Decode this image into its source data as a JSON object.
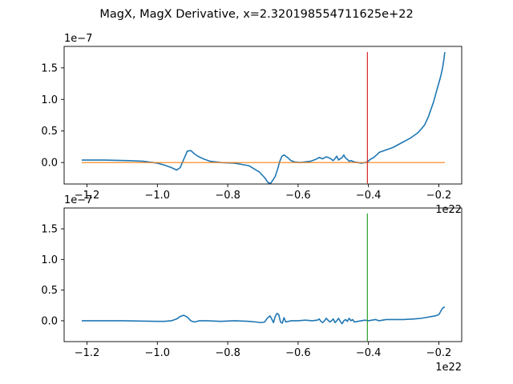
{
  "figure": {
    "title": "MagX, MagX Derivative, x=2.320198554711625e+22"
  },
  "chart_data": [
    {
      "type": "line",
      "name": "top-panel",
      "y_offset_label": "1e−7",
      "x_offset_label": "1e22",
      "xlim": [
        -1.265,
        -0.135
      ],
      "ylim": [
        -0.34,
        1.84
      ],
      "x_ticks": [
        -1.2,
        -1.0,
        -0.8,
        -0.6,
        -0.4,
        -0.2
      ],
      "x_tick_labels": [
        "−1.2",
        "−1.0",
        "−0.8",
        "−0.6",
        "−0.4",
        "−0.2"
      ],
      "y_ticks": [
        0.0,
        0.5,
        1.0,
        1.5
      ],
      "y_tick_labels": [
        "0.0",
        "0.5",
        "1.0",
        "1.5"
      ],
      "series": [
        {
          "color": "#1f77b4",
          "x": [
            -1.215,
            -1.15,
            -1.08,
            -1.04,
            -1.0,
            -0.98,
            -0.96,
            -0.945,
            -0.935,
            -0.925,
            -0.915,
            -0.905,
            -0.895,
            -0.885,
            -0.87,
            -0.85,
            -0.82,
            -0.78,
            -0.74,
            -0.71,
            -0.695,
            -0.685,
            -0.678,
            -0.672,
            -0.665,
            -0.658,
            -0.652,
            -0.646,
            -0.64,
            -0.63,
            -0.62,
            -0.61,
            -0.595,
            -0.58,
            -0.565,
            -0.55,
            -0.54,
            -0.53,
            -0.52,
            -0.51,
            -0.5,
            -0.49,
            -0.485,
            -0.48,
            -0.475,
            -0.47,
            -0.465,
            -0.46,
            -0.455,
            -0.45,
            -0.44,
            -0.43,
            -0.42,
            -0.41,
            -0.403,
            -0.395,
            -0.385,
            -0.375,
            -0.37,
            -0.36,
            -0.35,
            -0.34,
            -0.33,
            -0.32,
            -0.31,
            -0.3,
            -0.29,
            -0.28,
            -0.27,
            -0.26,
            -0.25,
            -0.24,
            -0.235,
            -0.23,
            -0.225,
            -0.22,
            -0.215,
            -0.21,
            -0.205,
            -0.2,
            -0.195,
            -0.19,
            -0.186,
            -0.183
          ],
          "y": [
            0.04,
            0.04,
            0.03,
            0.02,
            -0.01,
            -0.04,
            -0.08,
            -0.12,
            -0.08,
            0.05,
            0.18,
            0.19,
            0.14,
            0.1,
            0.06,
            0.02,
            0.0,
            -0.01,
            -0.05,
            -0.15,
            -0.24,
            -0.32,
            -0.33,
            -0.28,
            -0.22,
            -0.1,
            0.02,
            0.1,
            0.12,
            0.08,
            0.03,
            0.01,
            0.0,
            0.01,
            0.02,
            0.05,
            0.08,
            0.06,
            0.09,
            0.07,
            0.03,
            0.1,
            0.04,
            0.06,
            0.08,
            0.12,
            0.07,
            0.05,
            0.02,
            0.03,
            0.01,
            0.0,
            -0.01,
            0.0,
            0.01,
            0.05,
            0.08,
            0.13,
            0.16,
            0.18,
            0.2,
            0.22,
            0.24,
            0.27,
            0.3,
            0.33,
            0.36,
            0.39,
            0.43,
            0.47,
            0.53,
            0.6,
            0.66,
            0.72,
            0.8,
            0.88,
            0.96,
            1.06,
            1.16,
            1.26,
            1.36,
            1.48,
            1.62,
            1.75
          ]
        },
        {
          "color": "#ff7f0e",
          "x": [
            -1.215,
            -0.183
          ],
          "y": [
            0.0,
            0.0
          ]
        },
        {
          "color": "#d62728",
          "x": [
            -0.403,
            -0.403
          ],
          "y": [
            -0.33,
            1.75
          ]
        }
      ]
    },
    {
      "type": "line",
      "name": "bottom-panel",
      "y_offset_label": "1e−7",
      "x_offset_label": "1e22",
      "xlim": [
        -1.265,
        -0.135
      ],
      "ylim": [
        -0.34,
        1.84
      ],
      "x_ticks": [
        -1.2,
        -1.0,
        -0.8,
        -0.6,
        -0.4,
        -0.2
      ],
      "x_tick_labels": [
        "−1.2",
        "−1.0",
        "−0.8",
        "−0.6",
        "−0.4",
        "−0.2"
      ],
      "y_ticks": [
        0.0,
        0.5,
        1.0,
        1.5
      ],
      "y_tick_labels": [
        "0.0",
        "0.5",
        "1.0",
        "1.5"
      ],
      "series": [
        {
          "color": "#1f77b4",
          "x": [
            -1.215,
            -1.1,
            -1.0,
            -0.98,
            -0.96,
            -0.945,
            -0.935,
            -0.925,
            -0.915,
            -0.905,
            -0.895,
            -0.88,
            -0.86,
            -0.82,
            -0.78,
            -0.74,
            -0.72,
            -0.705,
            -0.695,
            -0.688,
            -0.68,
            -0.675,
            -0.67,
            -0.665,
            -0.66,
            -0.655,
            -0.65,
            -0.645,
            -0.64,
            -0.635,
            -0.62,
            -0.6,
            -0.58,
            -0.56,
            -0.545,
            -0.54,
            -0.535,
            -0.53,
            -0.525,
            -0.52,
            -0.515,
            -0.51,
            -0.505,
            -0.5,
            -0.495,
            -0.49,
            -0.485,
            -0.48,
            -0.475,
            -0.47,
            -0.465,
            -0.46,
            -0.455,
            -0.45,
            -0.445,
            -0.44,
            -0.43,
            -0.42,
            -0.41,
            -0.4,
            -0.39,
            -0.38,
            -0.37,
            -0.36,
            -0.35,
            -0.33,
            -0.3,
            -0.27,
            -0.25,
            -0.24,
            -0.23,
            -0.22,
            -0.21,
            -0.2,
            -0.195,
            -0.19,
            -0.186,
            -0.183
          ],
          "y": [
            0.0,
            0.0,
            -0.01,
            -0.01,
            0.0,
            0.03,
            0.07,
            0.09,
            0.06,
            0.0,
            -0.02,
            0.0,
            0.0,
            -0.01,
            0.0,
            -0.01,
            -0.02,
            -0.03,
            -0.02,
            0.04,
            0.08,
            0.03,
            -0.03,
            0.07,
            0.12,
            0.1,
            -0.02,
            -0.04,
            0.05,
            -0.02,
            0.0,
            0.0,
            0.01,
            0.0,
            0.01,
            0.03,
            -0.01,
            -0.03,
            0.0,
            0.04,
            0.01,
            -0.02,
            0.0,
            0.03,
            -0.03,
            0.0,
            0.04,
            -0.01,
            -0.05,
            0.0,
            0.02,
            -0.01,
            0.04,
            0.0,
            0.02,
            -0.02,
            -0.01,
            0.0,
            0.01,
            0.0,
            0.01,
            0.02,
            0.0,
            0.01,
            0.02,
            0.02,
            0.02,
            0.03,
            0.04,
            0.05,
            0.06,
            0.07,
            0.08,
            0.1,
            0.15,
            0.2,
            0.22,
            0.22
          ]
        },
        {
          "color": "#2ca02c",
          "x": [
            -0.403,
            -0.403
          ],
          "y": [
            -0.33,
            1.75
          ]
        }
      ]
    }
  ]
}
